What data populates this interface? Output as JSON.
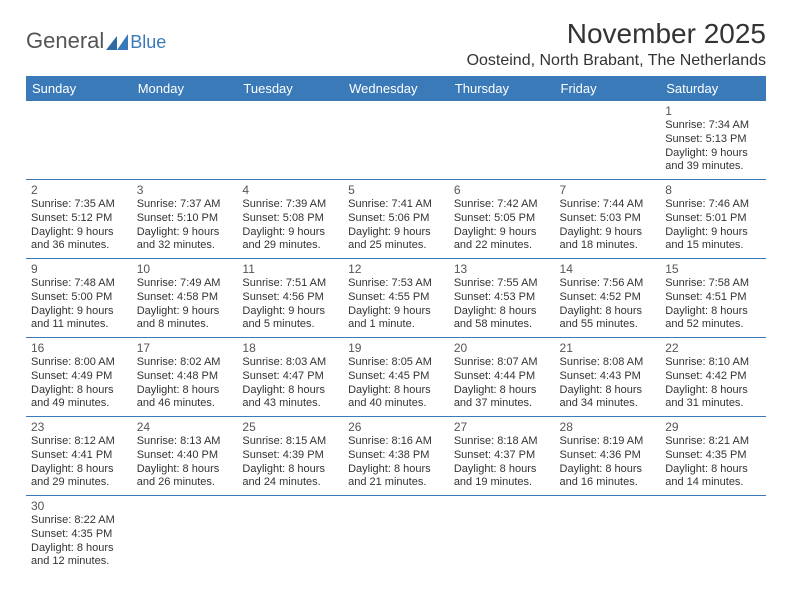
{
  "logo": {
    "text1": "General",
    "text2": "Blue"
  },
  "title": "November 2025",
  "location": "Oosteind, North Brabant, The Netherlands",
  "colors": {
    "header_bg": "#3a7ab8",
    "header_text": "#ffffff",
    "row_border": "#3a7ab8",
    "page_bg": "#ffffff",
    "text": "#333333"
  },
  "day_headers": [
    "Sunday",
    "Monday",
    "Tuesday",
    "Wednesday",
    "Thursday",
    "Friday",
    "Saturday"
  ],
  "weeks": [
    [
      null,
      null,
      null,
      null,
      null,
      null,
      {
        "n": "1",
        "sr": "Sunrise: 7:34 AM",
        "ss": "Sunset: 5:13 PM",
        "d1": "Daylight: 9 hours",
        "d2": "and 39 minutes."
      }
    ],
    [
      {
        "n": "2",
        "sr": "Sunrise: 7:35 AM",
        "ss": "Sunset: 5:12 PM",
        "d1": "Daylight: 9 hours",
        "d2": "and 36 minutes."
      },
      {
        "n": "3",
        "sr": "Sunrise: 7:37 AM",
        "ss": "Sunset: 5:10 PM",
        "d1": "Daylight: 9 hours",
        "d2": "and 32 minutes."
      },
      {
        "n": "4",
        "sr": "Sunrise: 7:39 AM",
        "ss": "Sunset: 5:08 PM",
        "d1": "Daylight: 9 hours",
        "d2": "and 29 minutes."
      },
      {
        "n": "5",
        "sr": "Sunrise: 7:41 AM",
        "ss": "Sunset: 5:06 PM",
        "d1": "Daylight: 9 hours",
        "d2": "and 25 minutes."
      },
      {
        "n": "6",
        "sr": "Sunrise: 7:42 AM",
        "ss": "Sunset: 5:05 PM",
        "d1": "Daylight: 9 hours",
        "d2": "and 22 minutes."
      },
      {
        "n": "7",
        "sr": "Sunrise: 7:44 AM",
        "ss": "Sunset: 5:03 PM",
        "d1": "Daylight: 9 hours",
        "d2": "and 18 minutes."
      },
      {
        "n": "8",
        "sr": "Sunrise: 7:46 AM",
        "ss": "Sunset: 5:01 PM",
        "d1": "Daylight: 9 hours",
        "d2": "and 15 minutes."
      }
    ],
    [
      {
        "n": "9",
        "sr": "Sunrise: 7:48 AM",
        "ss": "Sunset: 5:00 PM",
        "d1": "Daylight: 9 hours",
        "d2": "and 11 minutes."
      },
      {
        "n": "10",
        "sr": "Sunrise: 7:49 AM",
        "ss": "Sunset: 4:58 PM",
        "d1": "Daylight: 9 hours",
        "d2": "and 8 minutes."
      },
      {
        "n": "11",
        "sr": "Sunrise: 7:51 AM",
        "ss": "Sunset: 4:56 PM",
        "d1": "Daylight: 9 hours",
        "d2": "and 5 minutes."
      },
      {
        "n": "12",
        "sr": "Sunrise: 7:53 AM",
        "ss": "Sunset: 4:55 PM",
        "d1": "Daylight: 9 hours",
        "d2": "and 1 minute."
      },
      {
        "n": "13",
        "sr": "Sunrise: 7:55 AM",
        "ss": "Sunset: 4:53 PM",
        "d1": "Daylight: 8 hours",
        "d2": "and 58 minutes."
      },
      {
        "n": "14",
        "sr": "Sunrise: 7:56 AM",
        "ss": "Sunset: 4:52 PM",
        "d1": "Daylight: 8 hours",
        "d2": "and 55 minutes."
      },
      {
        "n": "15",
        "sr": "Sunrise: 7:58 AM",
        "ss": "Sunset: 4:51 PM",
        "d1": "Daylight: 8 hours",
        "d2": "and 52 minutes."
      }
    ],
    [
      {
        "n": "16",
        "sr": "Sunrise: 8:00 AM",
        "ss": "Sunset: 4:49 PM",
        "d1": "Daylight: 8 hours",
        "d2": "and 49 minutes."
      },
      {
        "n": "17",
        "sr": "Sunrise: 8:02 AM",
        "ss": "Sunset: 4:48 PM",
        "d1": "Daylight: 8 hours",
        "d2": "and 46 minutes."
      },
      {
        "n": "18",
        "sr": "Sunrise: 8:03 AM",
        "ss": "Sunset: 4:47 PM",
        "d1": "Daylight: 8 hours",
        "d2": "and 43 minutes."
      },
      {
        "n": "19",
        "sr": "Sunrise: 8:05 AM",
        "ss": "Sunset: 4:45 PM",
        "d1": "Daylight: 8 hours",
        "d2": "and 40 minutes."
      },
      {
        "n": "20",
        "sr": "Sunrise: 8:07 AM",
        "ss": "Sunset: 4:44 PM",
        "d1": "Daylight: 8 hours",
        "d2": "and 37 minutes."
      },
      {
        "n": "21",
        "sr": "Sunrise: 8:08 AM",
        "ss": "Sunset: 4:43 PM",
        "d1": "Daylight: 8 hours",
        "d2": "and 34 minutes."
      },
      {
        "n": "22",
        "sr": "Sunrise: 8:10 AM",
        "ss": "Sunset: 4:42 PM",
        "d1": "Daylight: 8 hours",
        "d2": "and 31 minutes."
      }
    ],
    [
      {
        "n": "23",
        "sr": "Sunrise: 8:12 AM",
        "ss": "Sunset: 4:41 PM",
        "d1": "Daylight: 8 hours",
        "d2": "and 29 minutes."
      },
      {
        "n": "24",
        "sr": "Sunrise: 8:13 AM",
        "ss": "Sunset: 4:40 PM",
        "d1": "Daylight: 8 hours",
        "d2": "and 26 minutes."
      },
      {
        "n": "25",
        "sr": "Sunrise: 8:15 AM",
        "ss": "Sunset: 4:39 PM",
        "d1": "Daylight: 8 hours",
        "d2": "and 24 minutes."
      },
      {
        "n": "26",
        "sr": "Sunrise: 8:16 AM",
        "ss": "Sunset: 4:38 PM",
        "d1": "Daylight: 8 hours",
        "d2": "and 21 minutes."
      },
      {
        "n": "27",
        "sr": "Sunrise: 8:18 AM",
        "ss": "Sunset: 4:37 PM",
        "d1": "Daylight: 8 hours",
        "d2": "and 19 minutes."
      },
      {
        "n": "28",
        "sr": "Sunrise: 8:19 AM",
        "ss": "Sunset: 4:36 PM",
        "d1": "Daylight: 8 hours",
        "d2": "and 16 minutes."
      },
      {
        "n": "29",
        "sr": "Sunrise: 8:21 AM",
        "ss": "Sunset: 4:35 PM",
        "d1": "Daylight: 8 hours",
        "d2": "and 14 minutes."
      }
    ],
    [
      {
        "n": "30",
        "sr": "Sunrise: 8:22 AM",
        "ss": "Sunset: 4:35 PM",
        "d1": "Daylight: 8 hours",
        "d2": "and 12 minutes."
      },
      null,
      null,
      null,
      null,
      null,
      null
    ]
  ]
}
